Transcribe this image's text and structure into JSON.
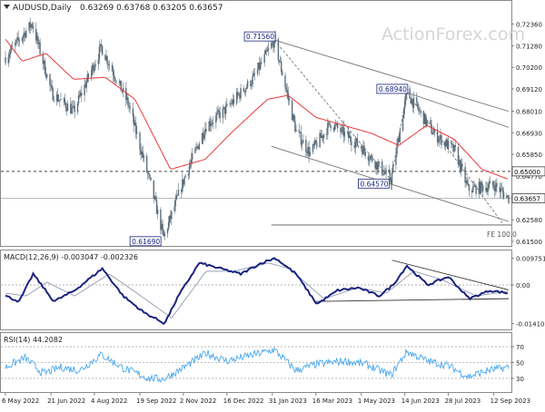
{
  "header": {
    "symbol_label": "AUDUSD,Daily",
    "ohlc_values": "0.63269 0.63768 0.63205 0.63657",
    "watermark": "ActionForex.com"
  },
  "colors": {
    "candle": "#5b6d7a",
    "ma": "#e8393b",
    "macd": "#1a237e",
    "signal": "#9aa3b8",
    "rsi": "#4aa8ee",
    "channel": "#808080",
    "guide": "#bbbbbb",
    "price_box_border": "#1a237e"
  },
  "price_panel": {
    "ylim": [
      0.615,
      0.732
    ],
    "right_ticks": [
      "0.72360",
      "0.71280",
      "0.70200",
      "0.69120",
      "0.68010",
      "0.66930",
      "0.65850",
      "0.64770",
      "0.63690",
      "0.62580",
      "0.61500"
    ],
    "level_labels": [
      "0.65000",
      "0.63657"
    ],
    "fe_label": "FE 100.0",
    "annotations": [
      {
        "label": "0.71560",
        "date": "2023-02-02",
        "value": 0.7156
      },
      {
        "label": "0.68940",
        "date": "2023-06-16",
        "value": 0.6894
      },
      {
        "label": "0.64570",
        "date": "2023-05-31",
        "value": 0.6457
      },
      {
        "label": "0.61690",
        "date": "2022-10-13",
        "value": 0.6169
      }
    ]
  },
  "macd_panel": {
    "title": "MACD(12,26,9) -0.003047 -0.002326",
    "ylim": [
      -0.0152,
      0.0109
    ],
    "ticks": [
      "0.009751",
      "0.00",
      "-0.014107"
    ]
  },
  "rsi_panel": {
    "title": "RSI(14) 44.2082",
    "ylim": [
      15,
      85
    ],
    "ticks": [
      "70",
      "50",
      "30"
    ]
  },
  "x_axis": {
    "labels": [
      "6 May 2022",
      "21 Jun 2022",
      "4 Aug 2022",
      "19 Sep 2022",
      "2 Nov 2022",
      "16 Dec 2022",
      "31 Jan 2023",
      "16 Mar 2023",
      "1 May 2023",
      "14 Jun 2023",
      "28 Jul 2023",
      "12 Sep 2023"
    ]
  },
  "chart_data": [
    {
      "type": "line",
      "title": "AUDUSD,Daily",
      "x_range": [
        "2022-05-06",
        "2023-09-27"
      ],
      "ylim": [
        0.615,
        0.732
      ],
      "series": [
        {
          "kind": "close_approx",
          "x": [
            "2022-05-06",
            "2022-06-02",
            "2022-06-22",
            "2022-07-14",
            "2022-08-11",
            "2022-09-07",
            "2022-09-30",
            "2022-10-13",
            "2022-11-04",
            "2022-11-25",
            "2022-12-15",
            "2023-01-11",
            "2023-02-02",
            "2023-02-24",
            "2023-03-10",
            "2023-03-31",
            "2023-05-01",
            "2023-05-31",
            "2023-06-16",
            "2023-07-13",
            "2023-08-04",
            "2023-08-17",
            "2023-09-13",
            "2023-09-27"
          ],
          "values": [
            0.707,
            0.724,
            0.689,
            0.68,
            0.712,
            0.684,
            0.643,
            0.617,
            0.648,
            0.673,
            0.681,
            0.696,
            0.7156,
            0.67,
            0.659,
            0.674,
            0.662,
            0.6457,
            0.6894,
            0.669,
            0.66,
            0.641,
            0.643,
            0.6366
          ]
        },
        {
          "name": "",
          "kind": "moving_average",
          "x": [
            "2022-05-06",
            "2022-05-23",
            "2022-06-16",
            "2022-07-14",
            "2022-08-15",
            "2022-09-14",
            "2022-10-20",
            "2022-11-24",
            "2022-12-22",
            "2023-01-26",
            "2023-02-16",
            "2023-03-16",
            "2023-04-13",
            "2023-05-11",
            "2023-06-08",
            "2023-07-06",
            "2023-08-03",
            "2023-08-31",
            "2023-09-27"
          ],
          "values": [
            0.716,
            0.705,
            0.709,
            0.696,
            0.697,
            0.686,
            0.651,
            0.656,
            0.67,
            0.686,
            0.688,
            0.677,
            0.673,
            0.669,
            0.663,
            0.673,
            0.666,
            0.651,
            0.646
          ]
        }
      ],
      "horizontal_levels": [
        0.65,
        0.63657,
        0.6232
      ],
      "channel_lines": [
        {
          "from": [
            "2023-02-02",
            0.7156
          ],
          "to": [
            "2023-09-27",
            0.68
          ]
        },
        {
          "from": [
            "2023-01-30",
            0.6625
          ],
          "to": [
            "2023-09-27",
            0.625
          ]
        },
        {
          "from": [
            "2023-06-16",
            0.6894
          ],
          "to": [
            "2023-09-27",
            0.672
          ]
        }
      ],
      "wave_lines": [
        {
          "from": [
            "2023-02-02",
            0.7156
          ],
          "to": [
            "2023-05-31",
            0.6457
          ]
        },
        {
          "from": [
            "2023-05-31",
            0.6457
          ],
          "to": [
            "2023-06-16",
            0.6894
          ]
        },
        {
          "from": [
            "2023-06-16",
            0.6894
          ],
          "to": [
            "2023-09-22",
            0.6232
          ]
        }
      ]
    },
    {
      "type": "line",
      "title": "MACD(12,26,9) -0.003047 -0.002326",
      "ylim": [
        -0.0152,
        0.0109
      ],
      "series": [
        {
          "name": "MACD",
          "x": [
            "2022-05-06",
            "2022-05-20",
            "2022-06-03",
            "2022-06-24",
            "2022-07-15",
            "2022-08-12",
            "2022-09-02",
            "2022-09-23",
            "2022-10-14",
            "2022-10-28",
            "2022-11-18",
            "2022-12-09",
            "2022-12-30",
            "2023-01-20",
            "2023-02-03",
            "2023-02-24",
            "2023-03-17",
            "2023-04-07",
            "2023-04-28",
            "2023-05-19",
            "2023-06-02",
            "2023-06-16",
            "2023-07-07",
            "2023-07-28",
            "2023-08-18",
            "2023-09-08",
            "2023-09-27"
          ],
          "values": [
            -0.004,
            -0.006,
            0.004,
            -0.006,
            -0.002,
            0.006,
            -0.004,
            -0.01,
            -0.014,
            -0.004,
            0.008,
            0.006,
            0.004,
            0.008,
            0.0098,
            0.004,
            -0.007,
            -0.002,
            -0.001,
            -0.004,
            0.0,
            0.007,
            0.0,
            0.003,
            -0.005,
            -0.002,
            -0.003047
          ]
        },
        {
          "name": "Signal",
          "x": [
            "2022-05-06",
            "2022-05-27",
            "2022-06-17",
            "2022-07-15",
            "2022-08-19",
            "2022-09-16",
            "2022-10-21",
            "2022-11-25",
            "2022-12-23",
            "2023-01-27",
            "2023-02-17",
            "2023-03-24",
            "2023-04-28",
            "2023-05-26",
            "2023-06-23",
            "2023-07-21",
            "2023-08-25",
            "2023-09-27"
          ],
          "values": [
            -0.003,
            -0.004,
            0.001,
            -0.004,
            0.004,
            -0.003,
            -0.012,
            0.005,
            0.005,
            0.008,
            0.006,
            -0.005,
            -0.001,
            -0.003,
            0.005,
            0.002,
            -0.004,
            -0.002326
          ]
        }
      ],
      "trendlines": [
        {
          "from": [
            "2023-06-01",
            0.009
          ],
          "to": [
            "2023-09-27",
            -0.0018
          ]
        },
        {
          "from": [
            "2023-03-15",
            -0.006
          ],
          "to": [
            "2023-09-27",
            -0.005
          ]
        }
      ]
    },
    {
      "type": "line",
      "title": "RSI(14) 44.2082",
      "ylim": [
        15,
        85
      ],
      "series": [
        {
          "name": "RSI(14)",
          "x": [
            "2022-05-06",
            "2022-05-26",
            "2022-06-13",
            "2022-07-01",
            "2022-07-20",
            "2022-08-11",
            "2022-09-02",
            "2022-09-28",
            "2022-10-13",
            "2022-11-04",
            "2022-11-25",
            "2022-12-16",
            "2023-01-12",
            "2023-02-02",
            "2023-02-24",
            "2023-03-17",
            "2023-04-14",
            "2023-05-05",
            "2023-05-31",
            "2023-06-16",
            "2023-07-07",
            "2023-07-28",
            "2023-08-17",
            "2023-09-06",
            "2023-09-27"
          ],
          "values": [
            44,
            56,
            36,
            44,
            40,
            60,
            43,
            30,
            29,
            45,
            62,
            52,
            60,
            66,
            40,
            48,
            52,
            48,
            34,
            64,
            52,
            46,
            32,
            40,
            44.2
          ]
        }
      ],
      "levels": [
        70,
        50,
        30
      ]
    }
  ]
}
